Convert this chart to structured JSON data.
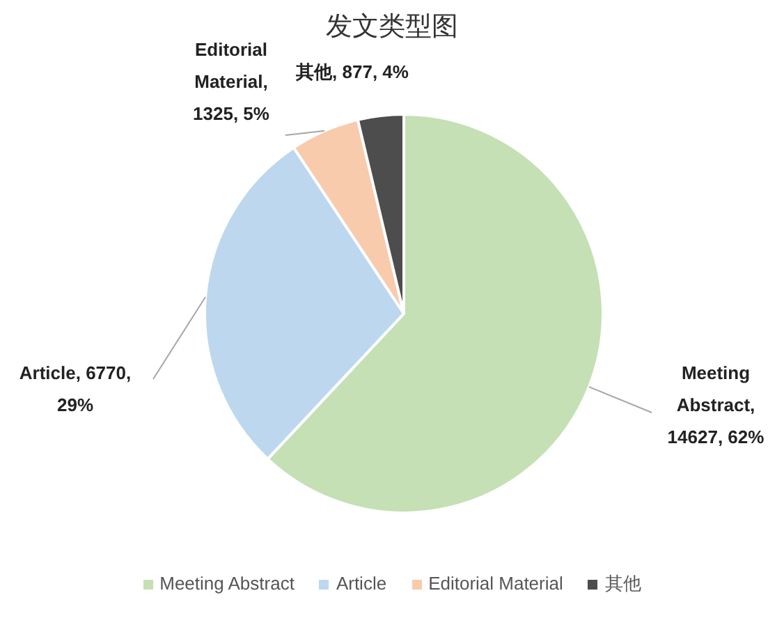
{
  "chart_data": {
    "type": "pie",
    "title": "发文类型图",
    "categories": [
      "Meeting Abstract",
      "Article",
      "Editorial Material",
      "其他"
    ],
    "values": [
      14627,
      6770,
      1325,
      877
    ],
    "colors": [
      "#c5e0b4",
      "#bdd7ee",
      "#f8cbad",
      "#4d4d4d"
    ],
    "value_labels": [
      "Meeting Abstract, 14627, 62%",
      "Article, 6770, 29%",
      "Editorial Material, 1325, 5%",
      "其他, 877, 4%"
    ],
    "legend": "bottom"
  }
}
